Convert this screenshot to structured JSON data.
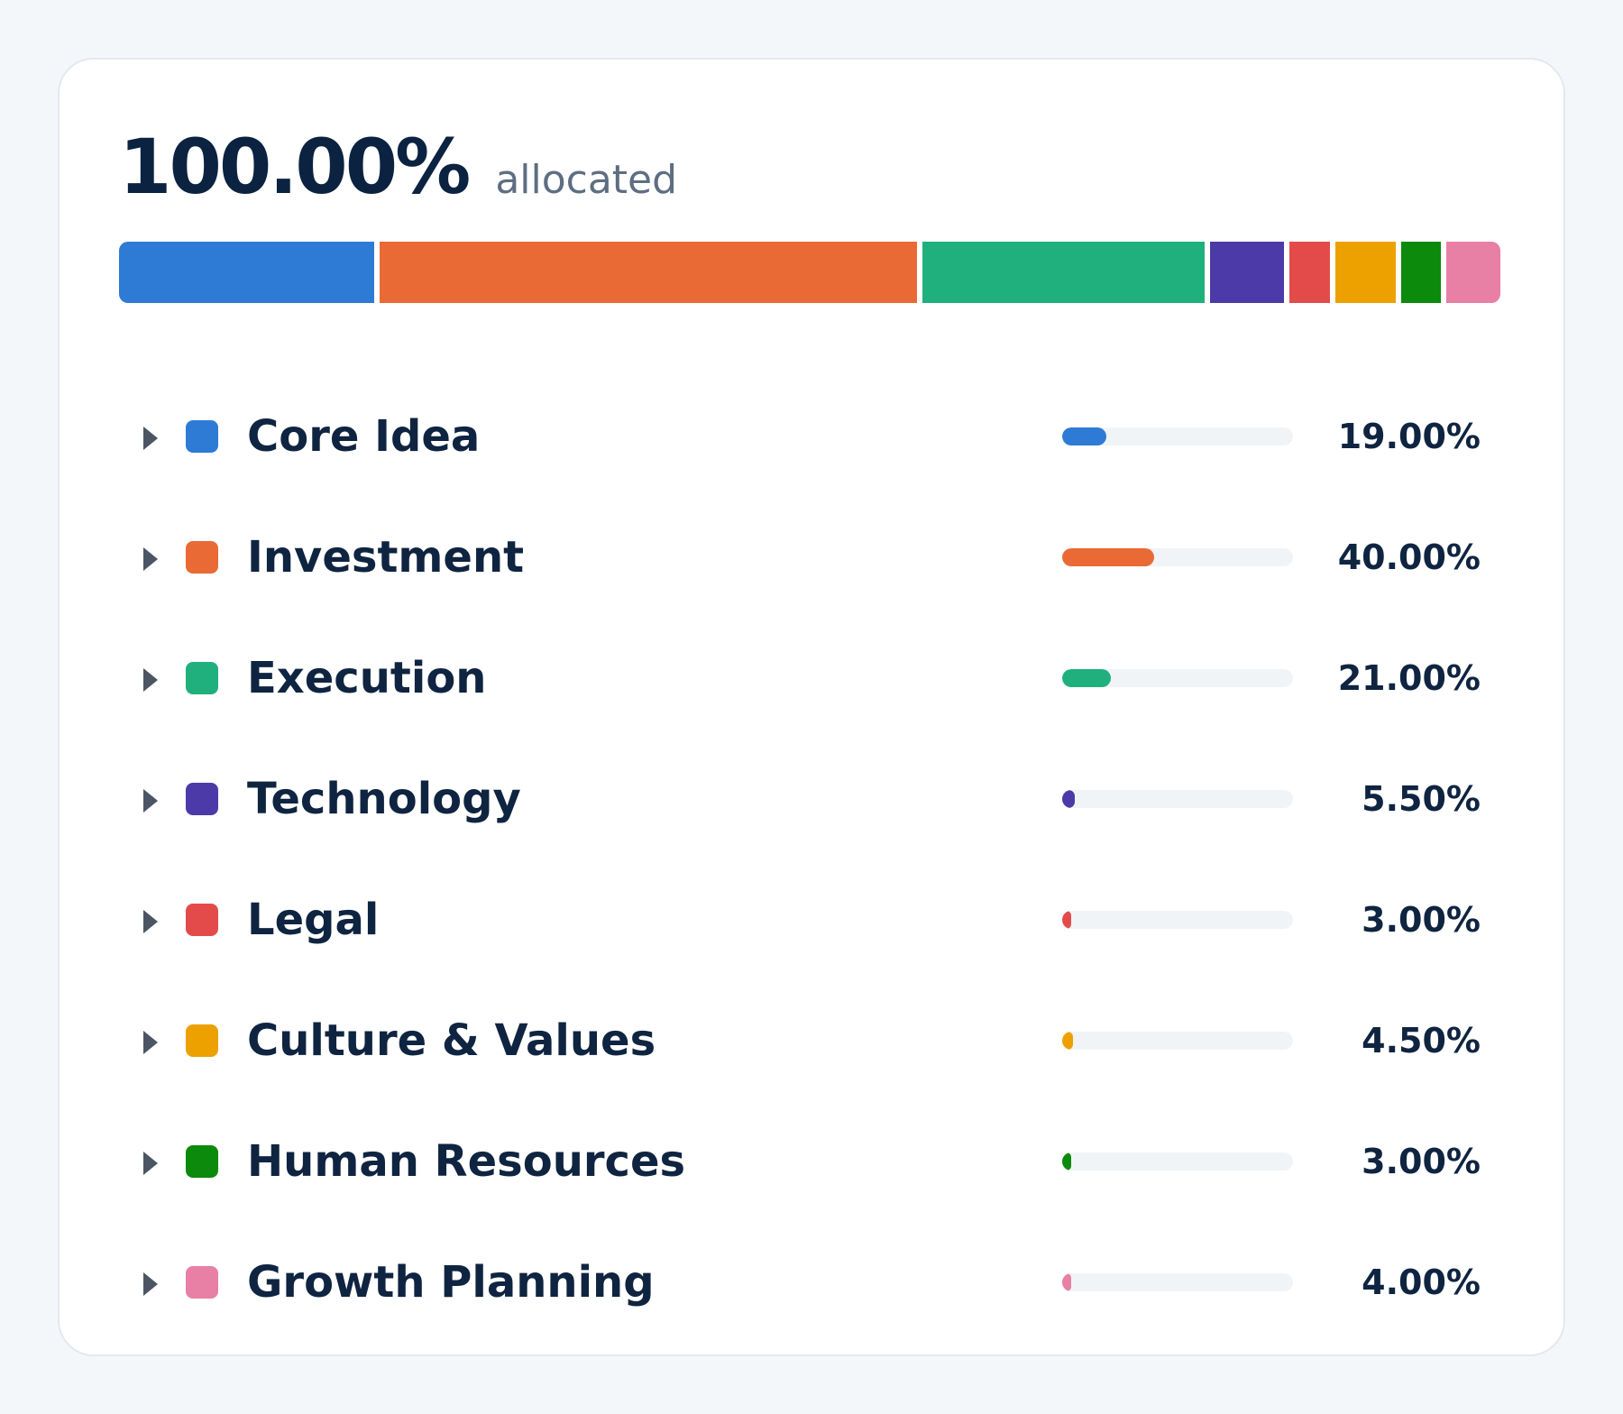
{
  "summary": {
    "total": "100.00%",
    "label": "allocated"
  },
  "categories": [
    {
      "name": "Core Idea",
      "percent_text": "19.00%",
      "percent": 19.0,
      "color": "#2e7bd6"
    },
    {
      "name": "Investment",
      "percent_text": "40.00%",
      "percent": 40.0,
      "color": "#e96a35"
    },
    {
      "name": "Execution",
      "percent_text": "21.00%",
      "percent": 21.0,
      "color": "#1fb07e"
    },
    {
      "name": "Technology",
      "percent_text": "5.50%",
      "percent": 5.5,
      "color": "#4b3aa8"
    },
    {
      "name": "Legal",
      "percent_text": "3.00%",
      "percent": 3.0,
      "color": "#e34b4b"
    },
    {
      "name": "Culture & Values",
      "percent_text": "4.50%",
      "percent": 4.5,
      "color": "#eda100"
    },
    {
      "name": "Human Resources",
      "percent_text": "3.00%",
      "percent": 3.0,
      "color": "#0b8a0b"
    },
    {
      "name": "Growth Planning",
      "percent_text": "4.00%",
      "percent": 4.0,
      "color": "#e87fa5"
    }
  ],
  "icons": {
    "row_toggle": "caret-right-icon"
  }
}
